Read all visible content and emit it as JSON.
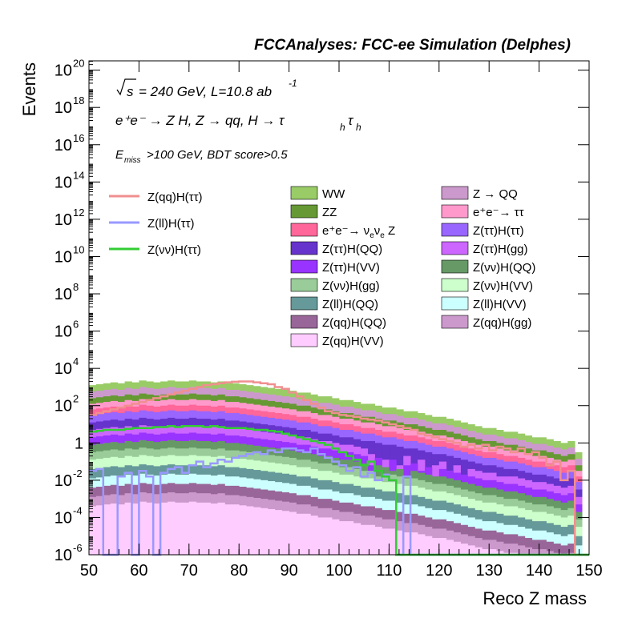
{
  "chart_data": {
    "type": "area",
    "header": "FCCAnalyses: FCC-ee Simulation (Delphes)",
    "xlabel": "Reco Z mass",
    "ylabel": "Events",
    "xlim": [
      50,
      150
    ],
    "ylim_log10": [
      -6,
      20.5
    ],
    "yscale": "log",
    "x_ticks": [
      50,
      60,
      70,
      80,
      90,
      100,
      110,
      120,
      130,
      140,
      150
    ],
    "y_ticks": [
      {
        "exp": -6,
        "base": "10",
        "power": "-6"
      },
      {
        "exp": -4,
        "base": "10",
        "power": "-4"
      },
      {
        "exp": -2,
        "base": "10",
        "power": "-2"
      },
      {
        "exp": 0,
        "base": "1",
        "power": ""
      },
      {
        "exp": 2,
        "base": "10",
        "power": "2"
      },
      {
        "exp": 4,
        "base": "10",
        "power": "4"
      },
      {
        "exp": 6,
        "base": "10",
        "power": "6"
      },
      {
        "exp": 8,
        "base": "10",
        "power": "8"
      },
      {
        "exp": 10,
        "base": "10",
        "power": "10"
      },
      {
        "exp": 12,
        "base": "10",
        "power": "12"
      },
      {
        "exp": 14,
        "base": "10",
        "power": "14"
      },
      {
        "exp": 16,
        "base": "10",
        "power": "16"
      },
      {
        "exp": 18,
        "base": "10",
        "power": "18"
      },
      {
        "exp": 20,
        "base": "10",
        "power": "20"
      }
    ],
    "annotations": {
      "sqrt_s": "s",
      "energy_lumi": "= 240 GeV, L=10.8 ab",
      "lumi_exp": "-1",
      "process": "e⁺e⁻ → Z H, Z → qq, H → τ",
      "tau_sub": "h",
      "selection_sub": "miss",
      "selection": ">100 GeV, BDT score>0.5",
      "selection_E": "E"
    },
    "signals": [
      {
        "name": "Z(qq)H(ττ)",
        "color": "#f08f8f",
        "log10_y": [
          1.5,
          1.6,
          1.7,
          1.8,
          1.9,
          2.0,
          2.1,
          2.2,
          2.3,
          2.4,
          2.5,
          2.6,
          2.7,
          2.8,
          2.9,
          3.0,
          3.1,
          3.15,
          3.2,
          3.25,
          3.28,
          3.3,
          3.3,
          3.25,
          3.2,
          3.15,
          3.0,
          2.9,
          2.7,
          2.5,
          2.3,
          2.1,
          1.9,
          1.7,
          1.6,
          1.5,
          1.45,
          1.4,
          1.3,
          1.25,
          1.2,
          1.1,
          1.0,
          0.9,
          0.8,
          0.7,
          0.5,
          0.4,
          0.3,
          0.2,
          0.1,
          0.0,
          -0.2,
          -0.1,
          -0.3,
          -0.1,
          -0.4,
          -0.2,
          -0.3,
          -0.5,
          -0.3,
          -0.6,
          -0.5,
          -0.8,
          -1.2,
          -1.0,
          -2.0,
          -1.5,
          -6,
          -6
        ]
      },
      {
        "name": "Z(ll)H(ττ)",
        "color": "#9999ff",
        "log10_y": [
          -1.5,
          -1.4,
          -6,
          -6,
          -1.8,
          -1.6,
          -6,
          -1.5,
          -1.8,
          -6,
          -1.6,
          -1.4,
          -1.3,
          -1.6,
          -1.2,
          -1.0,
          -1.3,
          -1.1,
          -0.9,
          -1.0,
          -0.8,
          -0.7,
          -0.6,
          -0.5,
          -0.6,
          -0.4,
          -0.5,
          -0.3,
          -0.3,
          -0.4,
          -0.5,
          -0.3,
          -0.6,
          -0.8,
          -1.0,
          -1.2,
          -1.5,
          -1.3,
          -1.8,
          -1.6,
          -2.0,
          -1.7,
          -2.0,
          -6,
          -1.8,
          -6,
          -6,
          -6,
          -6,
          -6,
          -6,
          -6,
          -6,
          -6,
          -6,
          -6,
          -6,
          -6,
          -6,
          -6,
          -6,
          -6,
          -6,
          -6,
          -6,
          -6,
          -6,
          -6,
          -6,
          -6
        ]
      },
      {
        "name": "Z(νν)H(ττ)",
        "color": "#33cc33",
        "log10_y": [
          0.6,
          0.65,
          0.7,
          0.7,
          0.7,
          0.75,
          0.8,
          0.8,
          0.8,
          0.85,
          0.85,
          0.9,
          0.85,
          0.9,
          0.9,
          0.9,
          0.85,
          0.9,
          0.85,
          0.8,
          0.8,
          0.8,
          0.75,
          0.7,
          0.7,
          0.65,
          0.6,
          0.5,
          0.4,
          0.3,
          0.2,
          0.1,
          0.0,
          -0.1,
          -0.3,
          -0.5,
          -0.7,
          -0.9,
          -1.2,
          -1.0,
          -1.5,
          -1.8,
          -2.0,
          -6,
          -6,
          -6,
          -6,
          -6,
          -6,
          -6,
          -6,
          -6,
          -6,
          -6,
          -6,
          -6,
          -6,
          -6,
          -6,
          -6,
          -6,
          -6,
          -6,
          -6,
          -6,
          -6,
          -6,
          -6,
          -6,
          -6
        ]
      }
    ],
    "stack_total_log10": [
      3.1,
      3.15,
      3.2,
      3.25,
      3.2,
      3.3,
      3.25,
      3.35,
      3.3,
      3.25,
      3.3,
      3.35,
      3.3,
      3.3,
      3.35,
      3.3,
      3.3,
      3.25,
      3.3,
      3.2,
      3.2,
      3.15,
      3.1,
      3.05,
      3.0,
      2.95,
      2.9,
      2.85,
      2.8,
      2.7,
      2.7,
      2.6,
      2.5,
      2.5,
      2.4,
      2.3,
      2.3,
      2.2,
      2.1,
      2.1,
      2.0,
      1.9,
      1.9,
      1.8,
      1.7,
      1.7,
      1.6,
      1.5,
      1.4,
      1.4,
      1.3,
      1.2,
      1.1,
      1.0,
      0.9,
      0.8,
      0.8,
      0.7,
      0.6,
      0.6,
      0.5,
      0.4,
      0.3,
      0.3,
      0.2,
      0.1,
      0.0,
      0.1,
      -0.5,
      -6
    ],
    "backgrounds": [
      {
        "name": "WW",
        "color": "#99cc66"
      },
      {
        "name": "Z → QQ",
        "color": "#cc99cc"
      },
      {
        "name": "ZZ",
        "color": "#669933"
      },
      {
        "name": "e⁺e⁻→ ττ",
        "color": "#ff99cc"
      },
      {
        "name": "e⁺e⁻→ ν",
        "sub1": "e",
        "mid": "ν",
        "sub2": "e",
        "tail": " Z",
        "color": "#ff6699"
      },
      {
        "name": "Z(ττ)H(ττ)",
        "color": "#9966ff"
      },
      {
        "name": "Z(ττ)H(QQ)",
        "color": "#6633cc"
      },
      {
        "name": "Z(ττ)H(gg)",
        "color": "#cc66ff"
      },
      {
        "name": "Z(ττ)H(VV)",
        "color": "#9933ff"
      },
      {
        "name": "Z(νν)H(QQ)",
        "color": "#669966"
      },
      {
        "name": "Z(νν)H(gg)",
        "color": "#99cc99"
      },
      {
        "name": "Z(νν)H(VV)",
        "color": "#ccffcc"
      },
      {
        "name": "Z(ll)H(QQ)",
        "color": "#669999"
      },
      {
        "name": "Z(ll)H(VV)",
        "color": "#ccffff"
      },
      {
        "name": "Z(qq)H(QQ)",
        "color": "#996699"
      },
      {
        "name": "Z(qq)H(gg)",
        "color": "#cc99cc"
      },
      {
        "name": "Z(qq)H(VV)",
        "color": "#ffccff"
      }
    ],
    "grid": false,
    "legend_placement": "top-center"
  }
}
